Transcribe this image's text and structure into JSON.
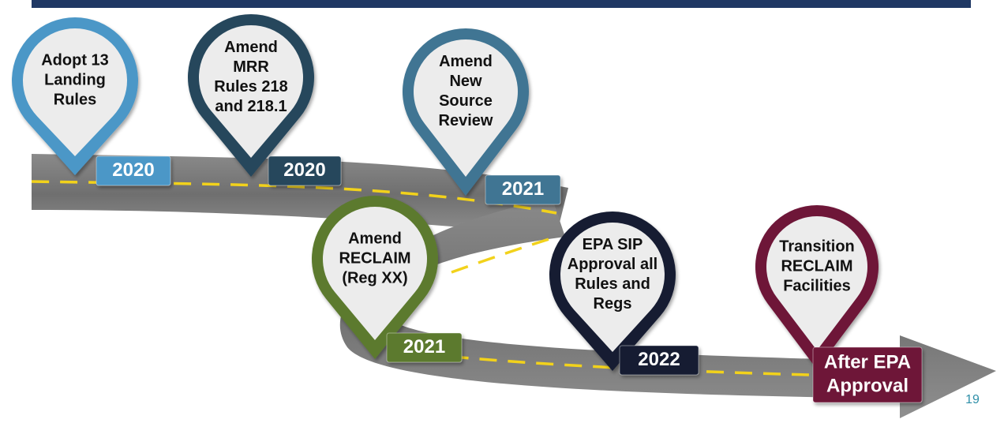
{
  "milestones": [
    {
      "label": [
        "Adopt 13",
        "Landing",
        "Rules"
      ],
      "year": [
        "2020"
      ]
    },
    {
      "label": [
        "Amend",
        "MRR",
        "Rules 218",
        "and 218.1"
      ],
      "year": [
        "2020"
      ]
    },
    {
      "label": [
        "Amend",
        "New",
        "Source",
        "Review"
      ],
      "year": [
        "2021"
      ]
    },
    {
      "label": [
        "Amend",
        "RECLAIM",
        "(Reg XX)"
      ],
      "year": [
        "2021"
      ]
    },
    {
      "label": [
        "EPA SIP",
        "Approval all",
        "Rules and",
        "Regs"
      ],
      "year": [
        "2022"
      ]
    },
    {
      "label": [
        "Transition",
        "RECLAIM",
        "Facilities"
      ],
      "year": [
        "After EPA",
        "Approval"
      ]
    }
  ],
  "page_number": "19"
}
